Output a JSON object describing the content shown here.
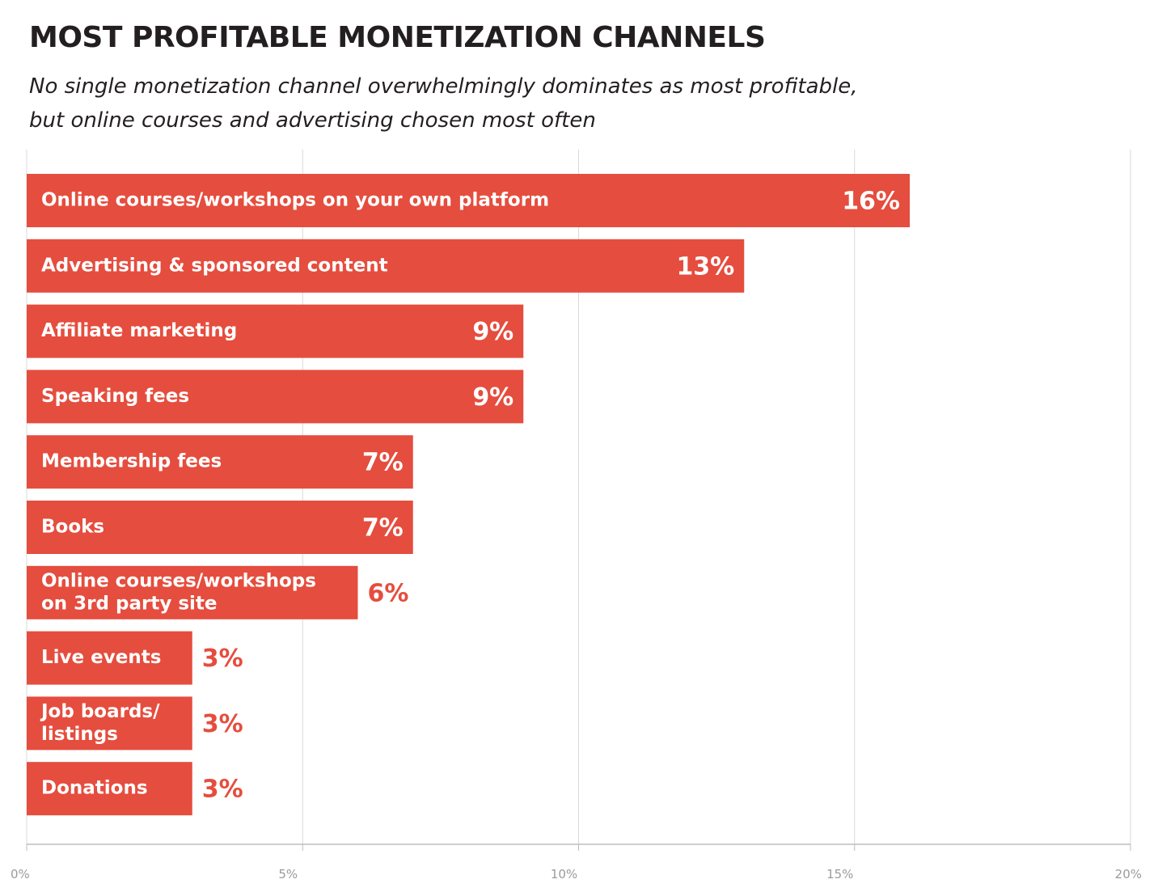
{
  "title": "MOST PROFITABLE MONETIZATION CHANNELS",
  "subtitle": [
    "No single monetization channel overwhelmingly dominates as most profitable,",
    "but online courses and advertising chosen most often"
  ],
  "colors": {
    "bar": "#e54d3e",
    "value_outside": "#e54d3e",
    "value_inside": "#ffffff",
    "grid": "#d9d9d9",
    "axis": "#bdbdbd",
    "tick_text": "#9b9b9b"
  },
  "chart_data": {
    "type": "bar",
    "orientation": "horizontal",
    "title": "MOST PROFITABLE MONETIZATION CHANNELS",
    "categories": [
      [
        "Online courses/workshops on your own platform"
      ],
      [
        "Advertising & sponsored content"
      ],
      [
        "Affiliate marketing"
      ],
      [
        "Speaking fees"
      ],
      [
        "Membership fees"
      ],
      [
        "Books"
      ],
      [
        "Online courses/workshops",
        "on 3rd party site"
      ],
      [
        "Live events"
      ],
      [
        "Job boards/",
        "listings"
      ],
      [
        "Donations"
      ]
    ],
    "values": [
      16,
      13,
      9,
      9,
      7,
      7,
      6,
      3,
      3,
      3
    ],
    "value_labels": [
      "16%",
      "13%",
      "9%",
      "9%",
      "7%",
      "7%",
      "6%",
      "3%",
      "3%",
      "3%"
    ],
    "xlim": [
      0,
      20
    ],
    "xticks": [
      0,
      5,
      10,
      15,
      20
    ],
    "xtick_labels": [
      "0%",
      "5%",
      "10%",
      "15%",
      "20%"
    ],
    "grid": true,
    "legend": "none"
  }
}
